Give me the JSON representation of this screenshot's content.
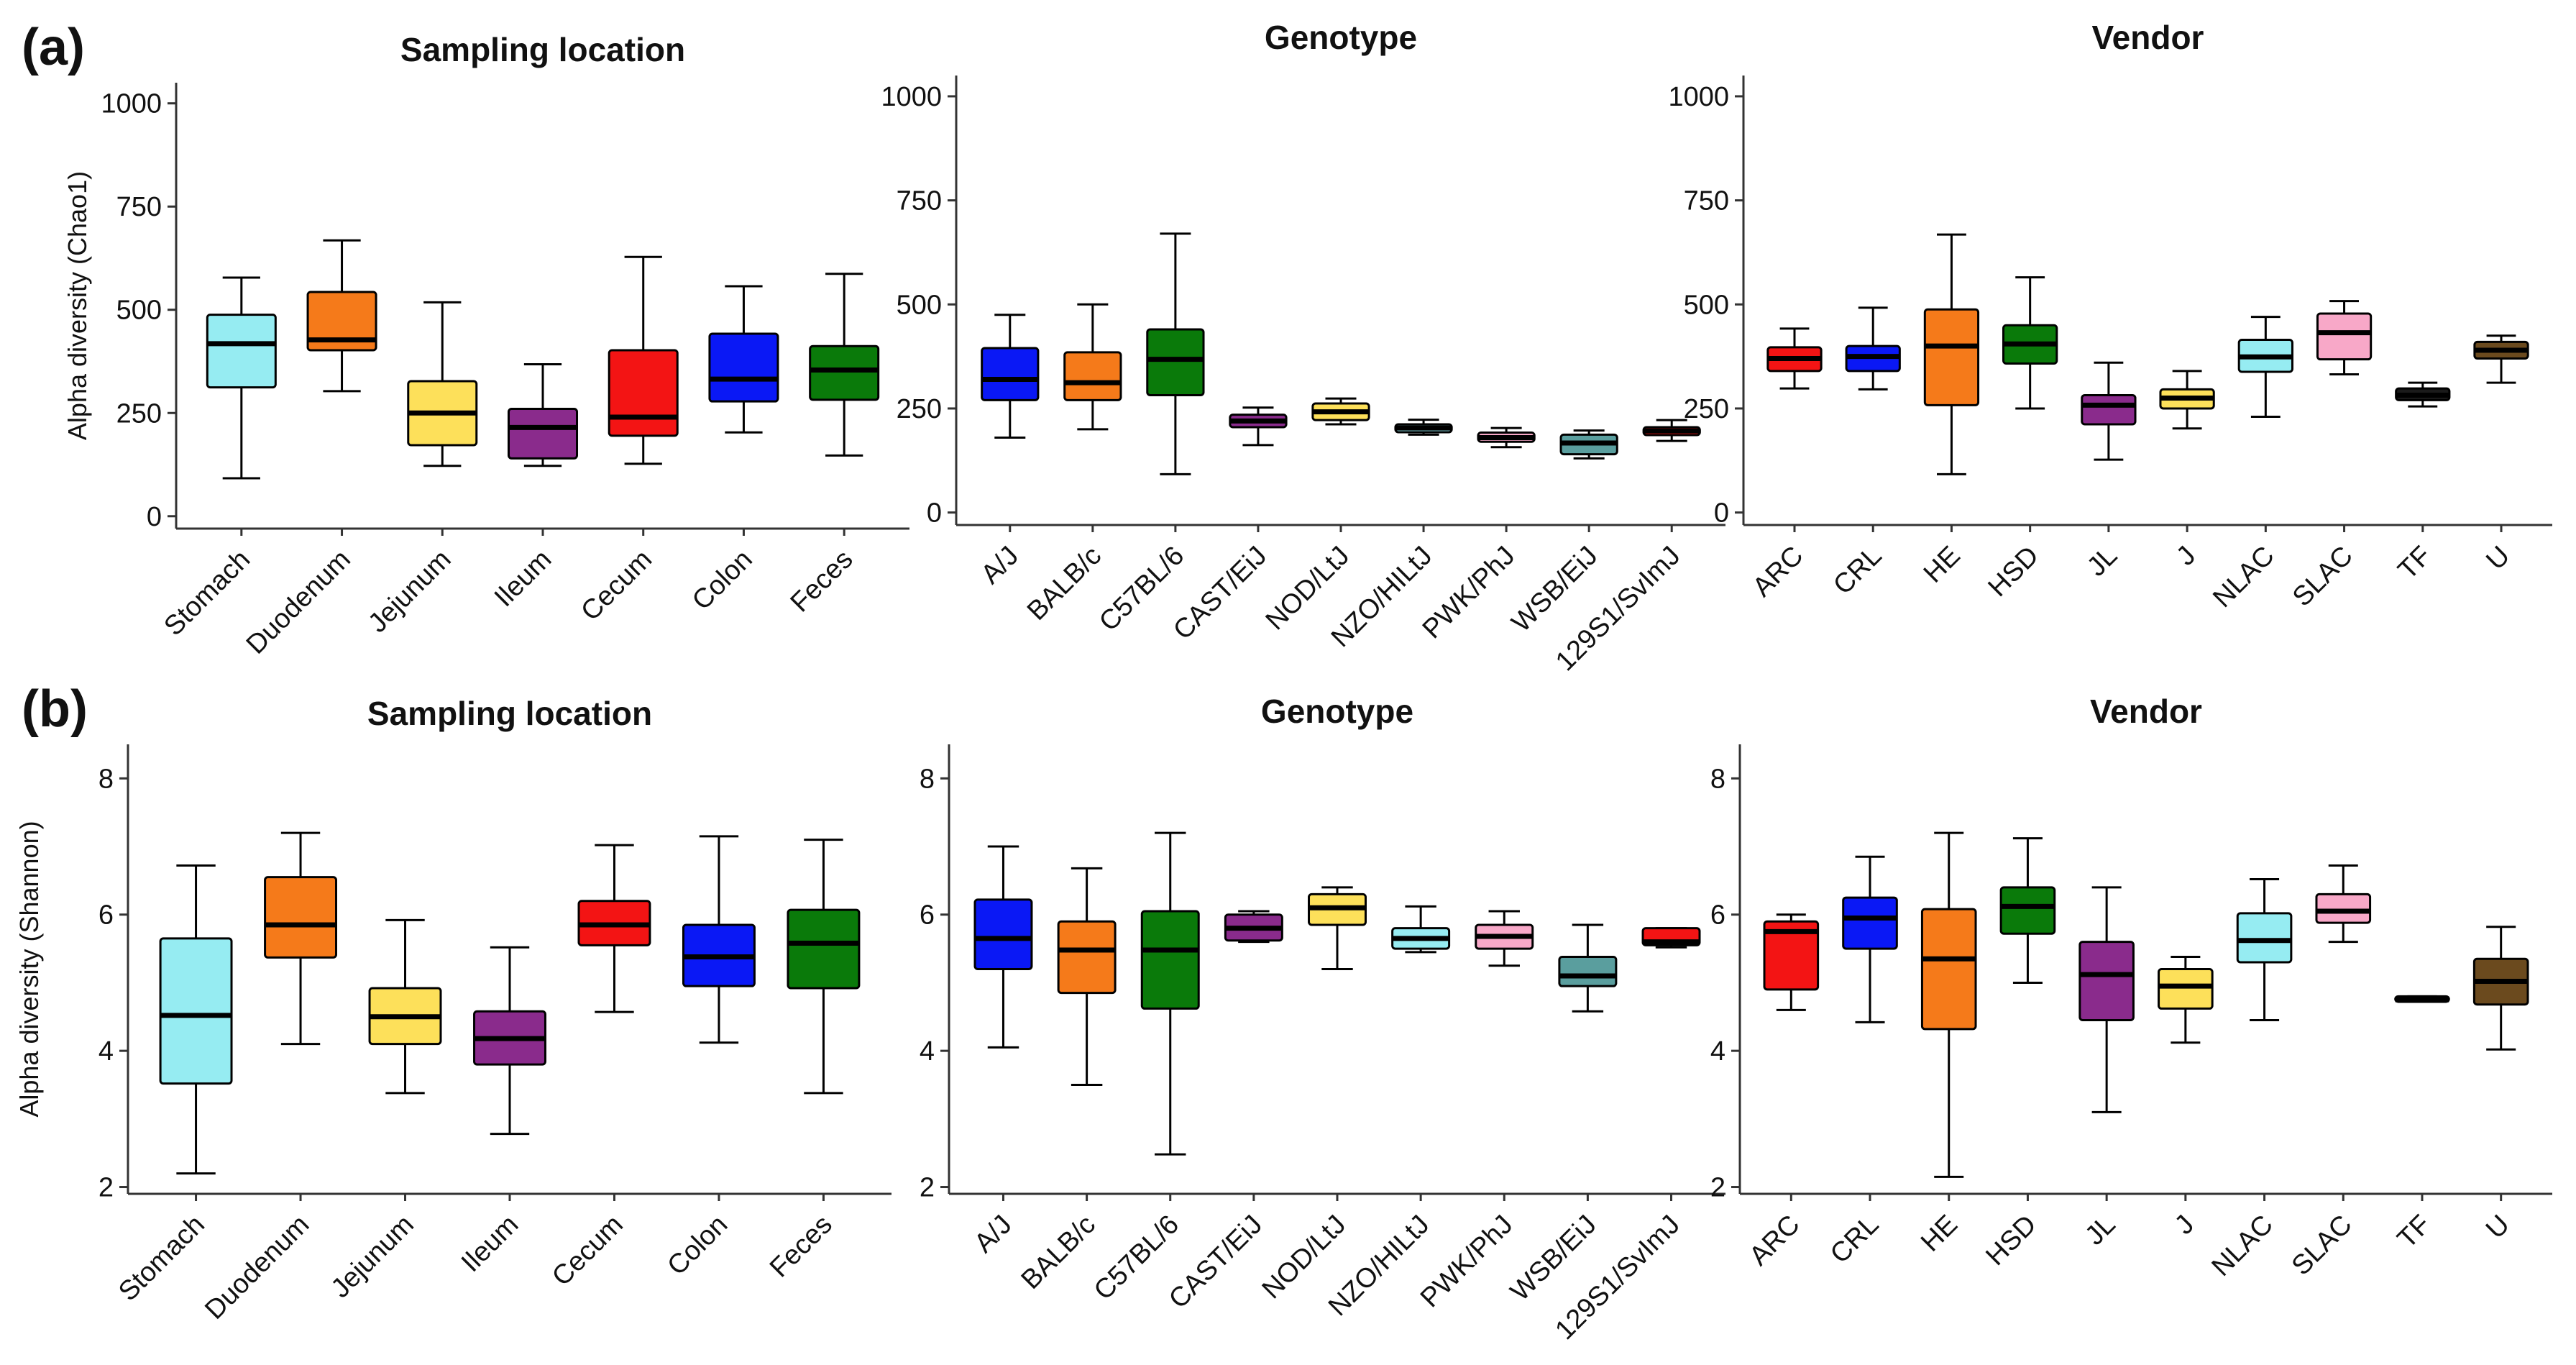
{
  "panel_labels": [
    "(a)",
    "(b)"
  ],
  "chart_data": [
    {
      "type": "boxplot",
      "title": "Sampling location",
      "panel": "(a)",
      "ylabel": "Alpha diversity (Chao1)",
      "ylim": [
        -30,
        1050
      ],
      "yticks": [
        0,
        250,
        500,
        750,
        1000
      ],
      "categories": [
        "Stomach",
        "Duodenum",
        "Jejunum",
        "Ileum",
        "Cecum",
        "Colon",
        "Feces"
      ],
      "colors": [
        "#96ecf2",
        "#f57a1a",
        "#fde05a",
        "#8a2b8c",
        "#f31414",
        "#0a18f5",
        "#0a7a0a"
      ],
      "boxes": [
        {
          "min": 92,
          "q1": 312,
          "median": 418,
          "q3": 488,
          "max": 578
        },
        {
          "min": 303,
          "q1": 402,
          "median": 427,
          "q3": 543,
          "max": 668
        },
        {
          "min": 122,
          "q1": 172,
          "median": 250,
          "q3": 327,
          "max": 518
        },
        {
          "min": 122,
          "q1": 140,
          "median": 215,
          "q3": 260,
          "max": 368
        },
        {
          "min": 127,
          "q1": 195,
          "median": 240,
          "q3": 402,
          "max": 628
        },
        {
          "min": 203,
          "q1": 278,
          "median": 332,
          "q3": 442,
          "max": 557
        },
        {
          "min": 147,
          "q1": 282,
          "median": 354,
          "q3": 412,
          "max": 587
        }
      ]
    },
    {
      "type": "boxplot",
      "title": "Genotype",
      "panel": "(a)",
      "ylabel": "",
      "ylim": [
        -30,
        1050
      ],
      "yticks": [
        0,
        250,
        500,
        750,
        1000
      ],
      "categories": [
        "A/J",
        "BALB/c",
        "C57BL/6",
        "CAST/EiJ",
        "NOD/LtJ",
        "NZO/HILtJ",
        "PWK/PhJ",
        "WSB/EiJ",
        "129S1/SvImJ"
      ],
      "colors": [
        "#0a18f5",
        "#f57a1a",
        "#0a7a0a",
        "#8a2b8c",
        "#fde05a",
        "#96ecf2",
        "#f8a8c8",
        "#5a9e9e",
        "#f31414"
      ],
      "boxes": [
        {
          "min": 180,
          "q1": 270,
          "median": 320,
          "q3": 395,
          "max": 475
        },
        {
          "min": 200,
          "q1": 270,
          "median": 312,
          "q3": 385,
          "max": 500
        },
        {
          "min": 92,
          "q1": 282,
          "median": 368,
          "q3": 440,
          "max": 670
        },
        {
          "min": 162,
          "q1": 205,
          "median": 220,
          "q3": 235,
          "max": 252
        },
        {
          "min": 212,
          "q1": 222,
          "median": 242,
          "q3": 262,
          "max": 274
        },
        {
          "min": 187,
          "q1": 193,
          "median": 203,
          "q3": 212,
          "max": 223
        },
        {
          "min": 157,
          "q1": 170,
          "median": 180,
          "q3": 192,
          "max": 203
        },
        {
          "min": 130,
          "q1": 140,
          "median": 167,
          "q3": 187,
          "max": 197
        },
        {
          "min": 172,
          "q1": 186,
          "median": 196,
          "q3": 205,
          "max": 222
        }
      ]
    },
    {
      "type": "boxplot",
      "title": "Vendor",
      "panel": "(a)",
      "ylabel": "",
      "ylim": [
        -30,
        1050
      ],
      "yticks": [
        0,
        250,
        500,
        750,
        1000
      ],
      "categories": [
        "ARC",
        "CRL",
        "HE",
        "HSD",
        "JL",
        "J",
        "NLAC",
        "SLAC",
        "TF",
        "U"
      ],
      "colors": [
        "#f31414",
        "#0a18f5",
        "#f57a1a",
        "#0a7a0a",
        "#8a2b8c",
        "#fde05a",
        "#96ecf2",
        "#f8a8c8",
        "#1a1a1a",
        "#6b4a1e"
      ],
      "boxes": [
        {
          "min": 298,
          "q1": 340,
          "median": 370,
          "q3": 397,
          "max": 442
        },
        {
          "min": 296,
          "q1": 340,
          "median": 375,
          "q3": 400,
          "max": 492
        },
        {
          "min": 92,
          "q1": 258,
          "median": 400,
          "q3": 488,
          "max": 668
        },
        {
          "min": 250,
          "q1": 358,
          "median": 405,
          "q3": 450,
          "max": 565
        },
        {
          "min": 127,
          "q1": 212,
          "median": 258,
          "q3": 282,
          "max": 360
        },
        {
          "min": 202,
          "q1": 250,
          "median": 275,
          "q3": 296,
          "max": 340
        },
        {
          "min": 230,
          "q1": 338,
          "median": 374,
          "q3": 415,
          "max": 470
        },
        {
          "min": 332,
          "q1": 368,
          "median": 432,
          "q3": 478,
          "max": 508
        },
        {
          "min": 255,
          "q1": 270,
          "median": 282,
          "q3": 298,
          "max": 312
        },
        {
          "min": 312,
          "q1": 370,
          "median": 390,
          "q3": 410,
          "max": 425
        }
      ]
    },
    {
      "type": "boxplot",
      "title": "Sampling location",
      "panel": "(b)",
      "ylabel": "Alpha diversity (Shannon)",
      "ylim": [
        1.9,
        8.5
      ],
      "yticks": [
        2,
        4,
        6,
        8
      ],
      "categories": [
        "Stomach",
        "Duodenum",
        "Jejunum",
        "Ileum",
        "Cecum",
        "Colon",
        "Feces"
      ],
      "colors": [
        "#96ecf2",
        "#f57a1a",
        "#fde05a",
        "#8a2b8c",
        "#f31414",
        "#0a18f5",
        "#0a7a0a"
      ],
      "boxes": [
        {
          "min": 2.2,
          "q1": 3.52,
          "median": 4.52,
          "q3": 5.65,
          "max": 6.72
        },
        {
          "min": 4.1,
          "q1": 5.37,
          "median": 5.85,
          "q3": 6.55,
          "max": 7.2
        },
        {
          "min": 3.38,
          "q1": 4.1,
          "median": 4.5,
          "q3": 4.92,
          "max": 5.92
        },
        {
          "min": 2.78,
          "q1": 3.8,
          "median": 4.18,
          "q3": 4.58,
          "max": 5.52
        },
        {
          "min": 4.57,
          "q1": 5.55,
          "median": 5.85,
          "q3": 6.2,
          "max": 7.02
        },
        {
          "min": 4.12,
          "q1": 4.95,
          "median": 5.38,
          "q3": 5.85,
          "max": 7.15
        },
        {
          "min": 3.38,
          "q1": 4.92,
          "median": 5.58,
          "q3": 6.07,
          "max": 7.1
        }
      ]
    },
    {
      "type": "boxplot",
      "title": "Genotype",
      "panel": "(b)",
      "ylabel": "",
      "ylim": [
        1.9,
        8.5
      ],
      "yticks": [
        2,
        4,
        6,
        8
      ],
      "categories": [
        "A/J",
        "BALB/c",
        "C57BL/6",
        "CAST/EiJ",
        "NOD/LtJ",
        "NZO/HILtJ",
        "PWK/PhJ",
        "WSB/EiJ",
        "129S1/SvImJ"
      ],
      "colors": [
        "#0a18f5",
        "#f57a1a",
        "#0a7a0a",
        "#8a2b8c",
        "#fde05a",
        "#96ecf2",
        "#f8a8c8",
        "#5a9e9e",
        "#f31414"
      ],
      "boxes": [
        {
          "min": 4.05,
          "q1": 5.2,
          "median": 5.65,
          "q3": 6.22,
          "max": 7.0
        },
        {
          "min": 3.5,
          "q1": 4.85,
          "median": 5.48,
          "q3": 5.9,
          "max": 6.68
        },
        {
          "min": 2.48,
          "q1": 4.62,
          "median": 5.48,
          "q3": 6.05,
          "max": 7.2
        },
        {
          "min": 5.6,
          "q1": 5.62,
          "median": 5.8,
          "q3": 6.0,
          "max": 6.05
        },
        {
          "min": 5.2,
          "q1": 5.85,
          "median": 6.1,
          "q3": 6.3,
          "max": 6.4
        },
        {
          "min": 5.45,
          "q1": 5.5,
          "median": 5.65,
          "q3": 5.8,
          "max": 6.12
        },
        {
          "min": 5.25,
          "q1": 5.5,
          "median": 5.68,
          "q3": 5.85,
          "max": 6.05
        },
        {
          "min": 4.58,
          "q1": 4.95,
          "median": 5.1,
          "q3": 5.38,
          "max": 5.85
        },
        {
          "min": 5.52,
          "q1": 5.55,
          "median": 5.6,
          "q3": 5.8,
          "max": 5.8
        }
      ]
    },
    {
      "type": "boxplot",
      "title": "Vendor",
      "panel": "(b)",
      "ylabel": "",
      "ylim": [
        1.9,
        8.5
      ],
      "yticks": [
        2,
        4,
        6,
        8
      ],
      "categories": [
        "ARC",
        "CRL",
        "HE",
        "HSD",
        "JL",
        "J",
        "NLAC",
        "SLAC",
        "TF",
        "U"
      ],
      "colors": [
        "#f31414",
        "#0a18f5",
        "#f57a1a",
        "#0a7a0a",
        "#8a2b8c",
        "#fde05a",
        "#96ecf2",
        "#f8a8c8",
        "#1a1a1a",
        "#6b4a1e"
      ],
      "boxes": [
        {
          "min": 4.6,
          "q1": 4.9,
          "median": 5.75,
          "q3": 5.9,
          "max": 6.0
        },
        {
          "min": 4.42,
          "q1": 5.5,
          "median": 5.95,
          "q3": 6.25,
          "max": 6.85
        },
        {
          "min": 2.15,
          "q1": 4.32,
          "median": 5.35,
          "q3": 6.08,
          "max": 7.2
        },
        {
          "min": 5.0,
          "q1": 5.72,
          "median": 6.12,
          "q3": 6.4,
          "max": 7.12
        },
        {
          "min": 3.1,
          "q1": 4.45,
          "median": 5.12,
          "q3": 5.6,
          "max": 6.4
        },
        {
          "min": 4.12,
          "q1": 4.62,
          "median": 4.95,
          "q3": 5.2,
          "max": 5.38
        },
        {
          "min": 4.45,
          "q1": 5.3,
          "median": 5.62,
          "q3": 6.02,
          "max": 6.52
        },
        {
          "min": 5.6,
          "q1": 5.88,
          "median": 6.05,
          "q3": 6.3,
          "max": 6.72
        },
        {
          "min": 4.72,
          "q1": 4.72,
          "median": 4.75,
          "q3": 4.8,
          "max": 4.8
        },
        {
          "min": 4.02,
          "q1": 4.68,
          "median": 5.02,
          "q3": 5.35,
          "max": 5.82
        }
      ]
    }
  ]
}
